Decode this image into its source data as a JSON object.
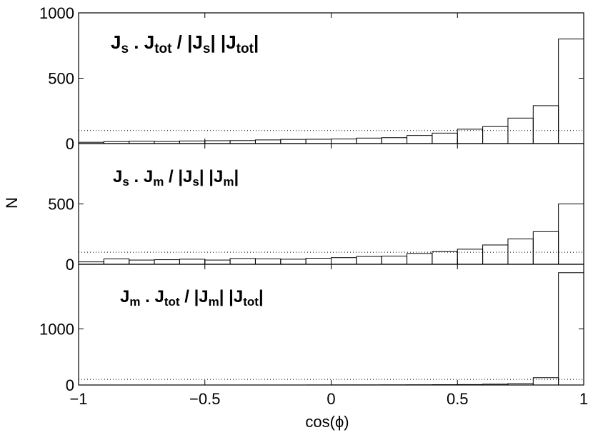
{
  "chart_data": [
    {
      "type": "bar",
      "title_parts": [
        {
          "text": "J",
          "sub": false
        },
        {
          "text": "s",
          "sub": true
        },
        {
          "text": " . J",
          "sub": false
        },
        {
          "text": "tot",
          "sub": true
        },
        {
          "text": " / |J",
          "sub": false
        },
        {
          "text": "s",
          "sub": true
        },
        {
          "text": "| |J",
          "sub": false
        },
        {
          "text": "tot",
          "sub": true
        },
        {
          "text": "|",
          "sub": false
        }
      ],
      "bin_edges": [
        -1,
        -0.9,
        -0.8,
        -0.7,
        -0.6,
        -0.5,
        -0.4,
        -0.3,
        -0.2,
        -0.1,
        0,
        0.1,
        0.2,
        0.3,
        0.4,
        0.5,
        0.6,
        0.7,
        0.8,
        0.9,
        1
      ],
      "values": [
        10,
        15,
        18,
        16,
        20,
        22,
        23,
        28,
        32,
        33,
        35,
        42,
        45,
        62,
        80,
        110,
        130,
        195,
        290,
        800
      ],
      "reference_line": 100,
      "ylim": [
        0,
        1000
      ],
      "yticks": [
        0,
        500,
        1000
      ],
      "ytick_labels": [
        "0",
        "500",
        "1000"
      ]
    },
    {
      "type": "bar",
      "title_parts": [
        {
          "text": "J",
          "sub": false
        },
        {
          "text": "s",
          "sub": true
        },
        {
          "text": " . J",
          "sub": false
        },
        {
          "text": "m",
          "sub": true
        },
        {
          "text": " / |J",
          "sub": false
        },
        {
          "text": "s",
          "sub": true
        },
        {
          "text": "| |J",
          "sub": false
        },
        {
          "text": "m",
          "sub": true
        },
        {
          "text": "|",
          "sub": false
        }
      ],
      "bin_edges": [
        -1,
        -0.9,
        -0.8,
        -0.7,
        -0.6,
        -0.5,
        -0.4,
        -0.3,
        -0.2,
        -0.1,
        0,
        0.1,
        0.2,
        0.3,
        0.4,
        0.5,
        0.6,
        0.7,
        0.8,
        0.9,
        1
      ],
      "values": [
        20,
        45,
        35,
        38,
        42,
        35,
        48,
        45,
        42,
        50,
        55,
        65,
        68,
        90,
        105,
        125,
        160,
        210,
        270,
        500
      ],
      "reference_line": 100,
      "ylim": [
        0,
        1000
      ],
      "yticks": [
        0,
        500
      ],
      "ytick_labels": [
        "0",
        "500"
      ]
    },
    {
      "type": "bar",
      "title_parts": [
        {
          "text": "J",
          "sub": false
        },
        {
          "text": "m",
          "sub": true
        },
        {
          "text": " . J",
          "sub": false
        },
        {
          "text": "tot",
          "sub": true
        },
        {
          "text": " / |J",
          "sub": false
        },
        {
          "text": "m",
          "sub": true
        },
        {
          "text": "| |J",
          "sub": false
        },
        {
          "text": "tot",
          "sub": true
        },
        {
          "text": "|",
          "sub": false
        }
      ],
      "bin_edges": [
        -1,
        -0.9,
        -0.8,
        -0.7,
        -0.6,
        -0.5,
        -0.4,
        -0.3,
        -0.2,
        -0.1,
        0,
        0.1,
        0.2,
        0.3,
        0.4,
        0.5,
        0.6,
        0.7,
        0.8,
        0.9,
        1
      ],
      "values": [
        0,
        0,
        0,
        0,
        0,
        0,
        0,
        0,
        0,
        1,
        2,
        2,
        3,
        4,
        6,
        8,
        15,
        25,
        130,
        2000
      ],
      "reference_line": 100,
      "ylim": [
        0,
        2150
      ],
      "yticks": [
        0,
        1000
      ],
      "ytick_labels": [
        "0",
        "1000"
      ]
    }
  ],
  "xaxis": {
    "label": "cos(ϕ)",
    "range": [
      -1,
      1
    ],
    "ticks": [
      -1,
      -0.5,
      0,
      0.5,
      1
    ],
    "tick_labels": [
      "−1",
      "−0.5",
      "0",
      "0.5",
      "1"
    ]
  },
  "yaxis": {
    "label": "N"
  }
}
